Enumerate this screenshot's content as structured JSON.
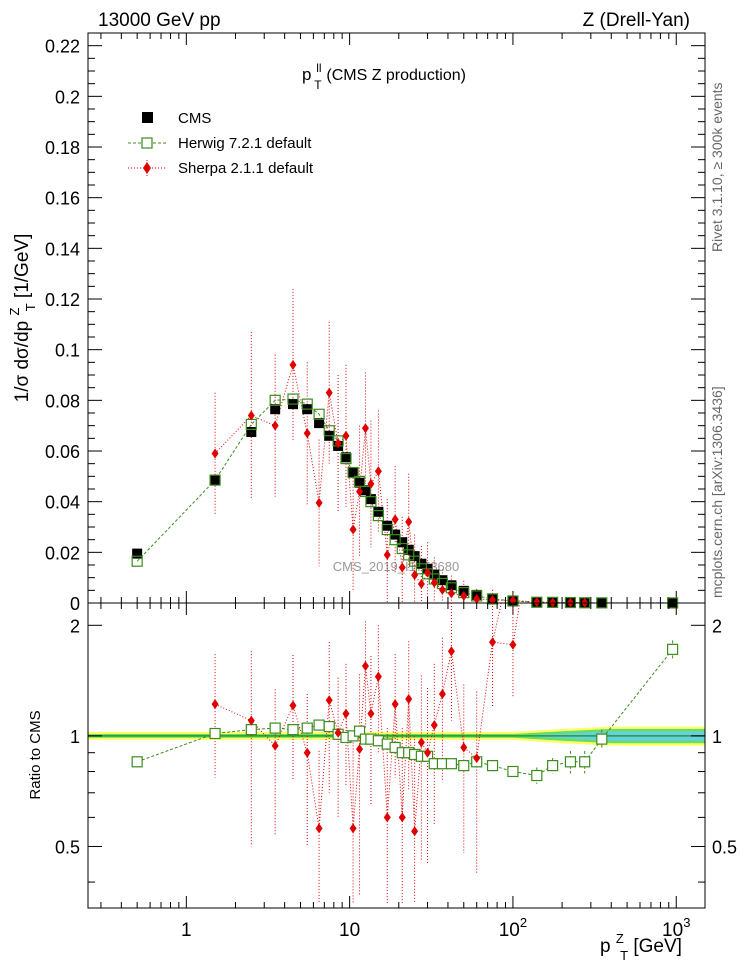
{
  "header": {
    "energy_label": "13000 GeV pp",
    "process_label": "Z (Drell-Yan)"
  },
  "side_labels": {
    "rivet": "Rivet 3.1.10, ≥ 300k events",
    "mcplots": "mcplots.cern.ch [arXiv:1306.3436]"
  },
  "watermark": "CMS_2019_I1753680",
  "colors": {
    "cms": "#000000",
    "herwig": "#3c8c1e",
    "sherpa": "#e00000",
    "band_yellow": "#ffff66",
    "band_green": "#66dd66",
    "band_blue": "#66ccff"
  },
  "chart_data": {
    "type": "scatter",
    "title_main": "p",
    "title_sup": "ll",
    "title_sub": "T",
    "title_rest": " (CMS Z production)",
    "xscale": "log",
    "xlim": [
      0.25,
      1500
    ],
    "x_ticks": [
      {
        "value": 1,
        "base": "1",
        "exp": ""
      },
      {
        "value": 10,
        "base": "10",
        "exp": ""
      },
      {
        "value": 100,
        "base": "10",
        "exp": "2"
      },
      {
        "value": 1000,
        "base": "10",
        "exp": "3"
      }
    ],
    "xlabel": {
      "main": "p",
      "sup": "Z",
      "sub": "T",
      "rest": " [GeV]"
    },
    "top": {
      "ylabel": "1/σ dσ/dp",
      "ylabel_sup": "Z",
      "ylabel_sub": "T",
      "ylabel_rest": " [1/GeV]",
      "ylim": [
        0,
        0.225
      ],
      "y_ticks": [
        "0",
        "0.02",
        "0.04",
        "0.06",
        "0.08",
        "0.1",
        "0.12",
        "0.14",
        "0.16",
        "0.18",
        "0.2",
        "0.22"
      ],
      "legend": [
        "CMS",
        "Herwig 7.2.1 default",
        "Sherpa 2.1.1 default"
      ]
    },
    "bottom": {
      "ylabel": "Ratio to CMS",
      "ylim": [
        0.34,
        2.3
      ],
      "y_ticks": [
        "0.5",
        "1",
        "2"
      ]
    },
    "x": [
      0.5,
      1.5,
      2.5,
      3.5,
      4.5,
      5.5,
      6.5,
      7.5,
      8.5,
      9.5,
      10.5,
      11.5,
      12.5,
      13.5,
      15,
      17,
      19,
      21,
      23,
      25,
      27.5,
      30,
      33,
      37,
      42,
      50,
      60,
      75,
      100,
      140,
      175,
      225,
      275,
      350,
      950
    ],
    "series": [
      {
        "name": "CMS",
        "values": [
          0.0195,
          0.0485,
          0.0675,
          0.0765,
          0.0785,
          0.0765,
          0.071,
          0.066,
          0.062,
          0.0575,
          0.0515,
          0.0475,
          0.0445,
          0.041,
          0.036,
          0.0305,
          0.027,
          0.024,
          0.021,
          0.0185,
          0.0155,
          0.0135,
          0.0112,
          0.009,
          0.007,
          0.0048,
          0.0032,
          0.0018,
          0.0009,
          0.0004,
          0.0003,
          0.0002,
          0.0001,
          5e-05,
          1e-05
        ],
        "ratio": [
          1,
          1,
          1,
          1,
          1,
          1,
          1,
          1,
          1,
          1,
          1,
          1,
          1,
          1,
          1,
          1,
          1,
          1,
          1,
          1,
          1,
          1,
          1,
          1,
          1,
          1,
          1,
          1,
          1,
          1,
          1,
          1,
          1,
          1,
          1
        ]
      },
      {
        "name": "Herwig 7.2.1 default",
        "values": [
          0.0165,
          0.0485,
          0.0705,
          0.08,
          0.0805,
          0.0785,
          0.0745,
          0.068,
          0.064,
          0.057,
          0.0515,
          0.048,
          0.044,
          0.04,
          0.0345,
          0.029,
          0.025,
          0.0215,
          0.019,
          0.0165,
          0.0135,
          0.0115,
          0.0095,
          0.0077,
          0.006,
          0.0041,
          0.0028,
          0.0016,
          0.0008,
          0.0003,
          0.00025,
          0.00017,
          9e-05,
          5e-05,
          2e-05
        ],
        "ratio": [
          0.85,
          1.015,
          1.04,
          1.05,
          1.04,
          1.05,
          1.07,
          1.06,
          1.01,
          0.99,
          1.0,
          1.03,
          0.98,
          0.98,
          0.97,
          0.95,
          0.93,
          0.9,
          0.9,
          0.89,
          0.88,
          0.88,
          0.84,
          0.84,
          0.84,
          0.83,
          0.85,
          0.83,
          0.8,
          0.78,
          0.83,
          0.85,
          0.85,
          0.98,
          1.72
        ],
        "ratio_err": [
          0,
          0,
          0,
          0,
          0,
          0,
          0,
          0,
          0,
          0,
          0,
          0,
          0,
          0,
          0,
          0,
          0,
          0,
          0,
          0,
          0,
          0,
          0,
          0,
          0,
          0,
          0,
          0,
          0,
          0.02,
          0.02,
          0.03,
          0.03,
          0.03,
          0.05
        ]
      },
      {
        "name": "Sherpa 2.1.1 default",
        "values": [
          null,
          0.059,
          0.074,
          0.07,
          0.094,
          0.067,
          0.0395,
          0.083,
          0.063,
          0.066,
          0.029,
          0.044,
          0.069,
          0.047,
          0.052,
          0.019,
          0.033,
          0.014,
          0.032,
          0.011,
          0.0075,
          0.012,
          0.008,
          0.0052,
          0.0038,
          0.0028,
          0.0016,
          0.0012,
          0.001,
          0.0004,
          0.0002,
          0.00015,
          8e-05,
          null,
          null
        ],
        "errors": [
          null,
          0.024,
          0.033,
          0.028,
          0.03,
          0.028,
          0.025,
          0.028,
          0.027,
          0.028,
          0.024,
          0.026,
          0.022,
          0.025,
          0.024,
          0.022,
          0.021,
          0.02,
          0.019,
          0.016,
          0.015,
          0.012,
          0.01,
          0.008,
          0.007,
          0.006,
          0.004,
          0.004,
          0.003,
          0.002,
          0.001,
          0.001,
          0.0005,
          null,
          null
        ],
        "ratio": [
          null,
          1.22,
          1.1,
          0.94,
          1.21,
          0.9,
          0.56,
          1.25,
          1.02,
          1.15,
          0.56,
          0.92,
          1.55,
          1.15,
          1.45,
          0.6,
          1.22,
          0.6,
          1.26,
          0.55,
          0.96,
          0.9,
          1.07,
          1.3,
          1.7,
          0.93,
          0.87,
          1.8,
          1.77,
          null,
          null,
          null,
          null,
          null,
          null
        ],
        "ratio_err": [
          null,
          0.45,
          0.6,
          0.4,
          0.45,
          0.4,
          0.35,
          0.55,
          0.42,
          0.42,
          0.4,
          0.55,
          0.5,
          0.5,
          0.55,
          0.45,
          0.45,
          0.45,
          0.55,
          0.45,
          0.5,
          0.45,
          0.5,
          0.55,
          0.6,
          0.45,
          0.45,
          0.6,
          0.5,
          null,
          null,
          null,
          null,
          null,
          null
        ]
      }
    ],
    "ratio_band": {
      "x": [
        0.25,
        100,
        200,
        400,
        1500
      ],
      "yellow_half": [
        0.025,
        0.025,
        0.045,
        0.06,
        0.06
      ],
      "green_half": [
        0.012,
        0.012,
        0.03,
        0.045,
        0.045
      ],
      "blue_half": [
        0.0,
        0.0,
        0.015,
        0.03,
        0.03
      ]
    }
  }
}
